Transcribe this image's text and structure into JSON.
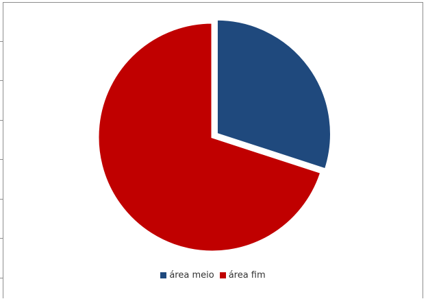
{
  "chart_data": {
    "type": "pie",
    "title": "",
    "categories": [
      "área meio",
      "área fim"
    ],
    "values": [
      30,
      70
    ],
    "colors": [
      "#1f497d",
      "#c00000"
    ],
    "exploded": [
      "área meio"
    ],
    "legend_position": "bottom"
  }
}
